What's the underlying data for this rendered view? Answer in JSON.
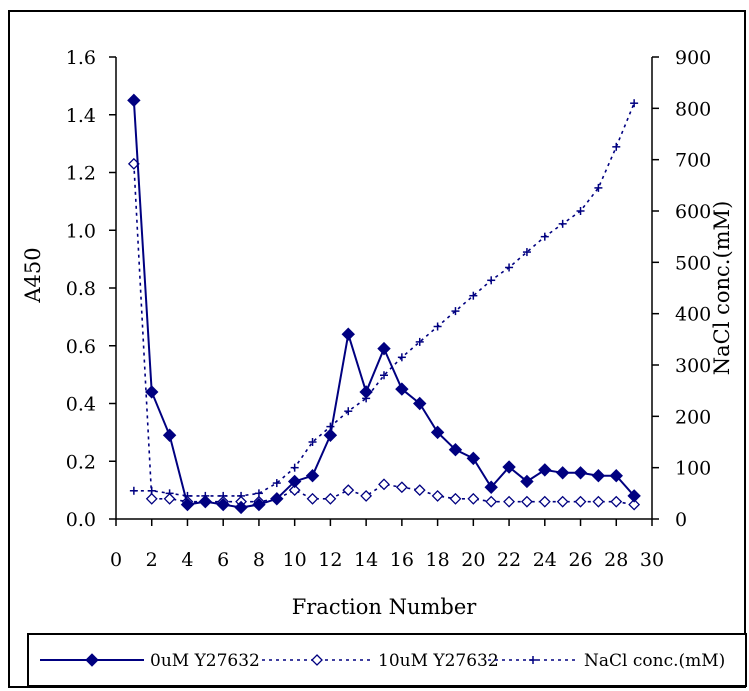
{
  "chart_data": {
    "type": "line",
    "xlabel": "Fraction Number",
    "ylabel": "A450",
    "y2label": "NaCl conc.(mM)",
    "xlim": [
      0,
      30
    ],
    "ylim": [
      0,
      1.6
    ],
    "y2lim": [
      0,
      900
    ],
    "x_ticks": [
      0,
      2,
      4,
      6,
      8,
      10,
      12,
      14,
      16,
      18,
      20,
      22,
      24,
      26,
      28,
      30
    ],
    "y_ticks": [
      "0.0",
      "0.2",
      "0.4",
      "0.6",
      "0.8",
      "1.0",
      "1.2",
      "1.4",
      "1.6"
    ],
    "y2_ticks": [
      0,
      100,
      200,
      300,
      400,
      500,
      600,
      700,
      800,
      900
    ],
    "grid": false,
    "legend_position": "bottom",
    "series": [
      {
        "name": "0uM Y27632",
        "axis": "left",
        "marker": "filled-diamond",
        "line": "solid",
        "color": "#000080",
        "x": [
          1,
          2,
          3,
          4,
          5,
          6,
          7,
          8,
          9,
          10,
          11,
          12,
          13,
          14,
          15,
          16,
          17,
          18,
          19,
          20,
          21,
          22,
          23,
          24,
          25,
          26,
          27,
          28,
          29
        ],
        "values": [
          1.45,
          0.44,
          0.29,
          0.05,
          0.06,
          0.05,
          0.04,
          0.05,
          0.07,
          0.13,
          0.15,
          0.29,
          0.64,
          0.44,
          0.59,
          0.45,
          0.4,
          0.3,
          0.24,
          0.21,
          0.11,
          0.18,
          0.13,
          0.17,
          0.16,
          0.16,
          0.15,
          0.15,
          0.08
        ]
      },
      {
        "name": "10uM Y27632",
        "axis": "left",
        "marker": "open-diamond",
        "line": "dotted",
        "color": "#000080",
        "x": [
          1,
          2,
          3,
          4,
          5,
          6,
          7,
          8,
          9,
          10,
          11,
          12,
          13,
          14,
          15,
          16,
          17,
          18,
          19,
          20,
          21,
          22,
          23,
          24,
          25,
          26,
          27,
          28,
          29
        ],
        "values": [
          1.23,
          0.07,
          0.07,
          0.06,
          0.06,
          0.06,
          0.06,
          0.06,
          0.07,
          0.1,
          0.07,
          0.07,
          0.1,
          0.08,
          0.12,
          0.11,
          0.1,
          0.08,
          0.07,
          0.07,
          0.06,
          0.06,
          0.06,
          0.06,
          0.06,
          0.06,
          0.06,
          0.06,
          0.05
        ]
      },
      {
        "name": "NaCl conc.(mM)",
        "axis": "right",
        "marker": "plus",
        "line": "dotted",
        "color": "#000080",
        "x": [
          1,
          2,
          3,
          4,
          5,
          6,
          7,
          8,
          9,
          10,
          11,
          12,
          13,
          14,
          15,
          16,
          17,
          18,
          19,
          20,
          21,
          22,
          23,
          24,
          25,
          26,
          27,
          28,
          29
        ],
        "values": [
          55,
          55,
          50,
          45,
          45,
          45,
          45,
          50,
          70,
          100,
          150,
          180,
          210,
          235,
          280,
          315,
          345,
          375,
          405,
          435,
          465,
          490,
          520,
          550,
          575,
          600,
          645,
          725,
          810
        ]
      }
    ]
  }
}
